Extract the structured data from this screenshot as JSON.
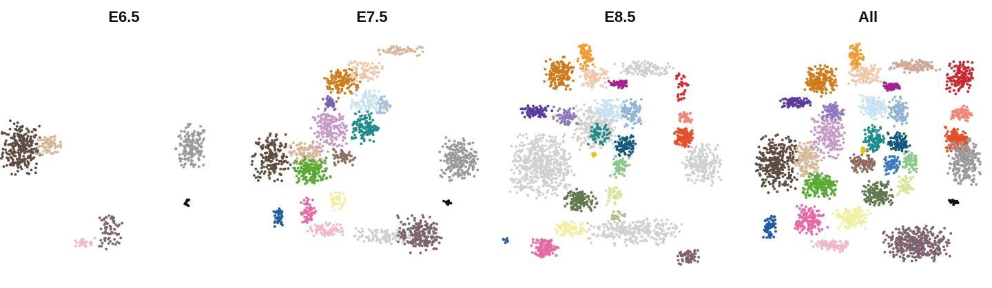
{
  "chart_data": {
    "type": "scatter",
    "panels": [
      {
        "title": "E6.5",
        "clusters": [
          {
            "color": "#5e4d40",
            "cx": -0.88,
            "cy": 0.12,
            "rx": 0.14,
            "ry": 0.2,
            "n": 260
          },
          {
            "color": "#d8b89a",
            "cx": -0.64,
            "cy": 0.14,
            "rx": 0.1,
            "ry": 0.07,
            "n": 70
          },
          {
            "color": "#9a9a9a",
            "cx": 0.58,
            "cy": 0.12,
            "rx": 0.12,
            "ry": 0.18,
            "n": 150
          },
          {
            "color": "#111111",
            "cx": 0.54,
            "cy": -0.36,
            "rx": 0.02,
            "ry": 0.03,
            "n": 10
          },
          {
            "color": "#7e6470",
            "cx": -0.12,
            "cy": -0.6,
            "rx": 0.1,
            "ry": 0.13,
            "n": 70
          },
          {
            "color": "#f4b6c6",
            "cx": -0.36,
            "cy": -0.72,
            "rx": 0.1,
            "ry": 0.04,
            "n": 25
          }
        ]
      },
      {
        "title": "E7.5",
        "clusters": [
          {
            "color": "#5e4d40",
            "cx": -0.86,
            "cy": 0.04,
            "rx": 0.14,
            "ry": 0.2,
            "n": 180
          },
          {
            "color": "#d8b89a",
            "cx": -0.56,
            "cy": 0.06,
            "rx": 0.12,
            "ry": 0.1,
            "n": 120
          },
          {
            "color": "#5aaa35",
            "cx": -0.52,
            "cy": -0.08,
            "rx": 0.14,
            "ry": 0.1,
            "n": 170
          },
          {
            "color": "#c79ac6",
            "cx": -0.36,
            "cy": 0.28,
            "rx": 0.13,
            "ry": 0.16,
            "n": 180
          },
          {
            "color": "#d07a18",
            "cx": -0.26,
            "cy": 0.7,
            "rx": 0.14,
            "ry": 0.12,
            "n": 130
          },
          {
            "color": "#f0c8a8",
            "cx": -0.06,
            "cy": 0.8,
            "rx": 0.14,
            "ry": 0.08,
            "n": 70
          },
          {
            "color": "#d8b89a",
            "cx": 0.22,
            "cy": 0.98,
            "rx": 0.18,
            "ry": 0.04,
            "n": 60
          },
          {
            "color": "#c8e2f2",
            "cx": -0.06,
            "cy": 0.52,
            "rx": 0.11,
            "ry": 0.09,
            "n": 90
          },
          {
            "color": "#1e8c8c",
            "cx": -0.06,
            "cy": 0.3,
            "rx": 0.1,
            "ry": 0.12,
            "n": 120
          },
          {
            "color": "#7d62b0",
            "cx": -0.36,
            "cy": 0.52,
            "rx": 0.06,
            "ry": 0.06,
            "n": 40
          },
          {
            "color": "#8e6c60",
            "cx": -0.24,
            "cy": 0.04,
            "rx": 0.08,
            "ry": 0.06,
            "n": 60
          },
          {
            "color": "#a8bee0",
            "cx": 0.1,
            "cy": 0.5,
            "rx": 0.06,
            "ry": 0.08,
            "n": 40
          },
          {
            "color": "#9a9a9a",
            "cx": 0.74,
            "cy": 0.02,
            "rx": 0.14,
            "ry": 0.16,
            "n": 220
          },
          {
            "color": "#111111",
            "cx": 0.64,
            "cy": -0.36,
            "rx": 0.03,
            "ry": 0.02,
            "n": 12
          },
          {
            "color": "#d0d0d0",
            "cx": 0.1,
            "cy": -0.66,
            "rx": 0.22,
            "ry": 0.06,
            "n": 110
          },
          {
            "color": "#7e6470",
            "cx": 0.4,
            "cy": -0.64,
            "rx": 0.16,
            "ry": 0.14,
            "n": 200
          },
          {
            "color": "#f4b6c6",
            "cx": -0.38,
            "cy": -0.6,
            "rx": 0.14,
            "ry": 0.05,
            "n": 70
          },
          {
            "color": "#e868a2",
            "cx": -0.54,
            "cy": -0.44,
            "rx": 0.06,
            "ry": 0.1,
            "n": 60
          },
          {
            "color": "#f1f0a0",
            "cx": -0.3,
            "cy": -0.34,
            "rx": 0.06,
            "ry": 0.08,
            "n": 40
          },
          {
            "color": "#1f5aa6",
            "cx": -0.8,
            "cy": -0.48,
            "rx": 0.04,
            "ry": 0.08,
            "n": 40
          }
        ]
      },
      {
        "title": "E8.5",
        "clusters": [
          {
            "color": "#d0d0d0",
            "cx": -0.66,
            "cy": -0.04,
            "rx": 0.24,
            "ry": 0.24,
            "n": 520
          },
          {
            "color": "#d0d0d0",
            "cx": -0.2,
            "cy": 0.3,
            "rx": 0.18,
            "ry": 0.18,
            "n": 260
          },
          {
            "color": "#d0d0d0",
            "cx": 0.12,
            "cy": -0.62,
            "rx": 0.34,
            "ry": 0.1,
            "n": 260
          },
          {
            "color": "#d0d0d0",
            "cx": 0.22,
            "cy": 0.82,
            "rx": 0.22,
            "ry": 0.06,
            "n": 110
          },
          {
            "color": "#d0d0d0",
            "cx": 0.7,
            "cy": -0.02,
            "rx": 0.14,
            "ry": 0.16,
            "n": 200
          },
          {
            "color": "#d07a18",
            "cx": -0.52,
            "cy": 0.78,
            "rx": 0.11,
            "ry": 0.12,
            "n": 160
          },
          {
            "color": "#f59a2e",
            "cx": -0.3,
            "cy": 0.92,
            "rx": 0.06,
            "ry": 0.1,
            "n": 70
          },
          {
            "color": "#f0c8a8",
            "cx": -0.22,
            "cy": 0.74,
            "rx": 0.1,
            "ry": 0.08,
            "n": 80
          },
          {
            "color": "#5a3ba0",
            "cx": -0.72,
            "cy": 0.44,
            "rx": 0.12,
            "ry": 0.05,
            "n": 90
          },
          {
            "color": "#8f79c0",
            "cx": -0.46,
            "cy": 0.4,
            "rx": 0.09,
            "ry": 0.07,
            "n": 70
          },
          {
            "color": "#c8e2f2",
            "cx": -0.1,
            "cy": 0.46,
            "rx": 0.1,
            "ry": 0.09,
            "n": 110
          },
          {
            "color": "#8fb4d4",
            "cx": 0.1,
            "cy": 0.42,
            "rx": 0.08,
            "ry": 0.11,
            "n": 90
          },
          {
            "color": "#155a80",
            "cx": 0.04,
            "cy": 0.14,
            "rx": 0.08,
            "ry": 0.08,
            "n": 90
          },
          {
            "color": "#1e8c8c",
            "cx": -0.18,
            "cy": 0.24,
            "rx": 0.08,
            "ry": 0.08,
            "n": 60
          },
          {
            "color": "#a8208c",
            "cx": 0.0,
            "cy": 0.68,
            "rx": 0.08,
            "ry": 0.03,
            "n": 60
          },
          {
            "color": "#8cc88c",
            "cx": 0.0,
            "cy": -0.04,
            "rx": 0.07,
            "ry": 0.09,
            "n": 70
          },
          {
            "color": "#d8e49a",
            "cx": -0.06,
            "cy": -0.3,
            "rx": 0.06,
            "ry": 0.08,
            "n": 40
          },
          {
            "color": "#627850",
            "cx": -0.34,
            "cy": -0.34,
            "rx": 0.12,
            "ry": 0.08,
            "n": 130
          },
          {
            "color": "#b8bc88",
            "cx": -0.02,
            "cy": -0.48,
            "rx": 0.06,
            "ry": 0.04,
            "n": 30
          },
          {
            "color": "#f1f0a0",
            "cx": -0.42,
            "cy": -0.6,
            "rx": 0.12,
            "ry": 0.06,
            "n": 80
          },
          {
            "color": "#e868a2",
            "cx": -0.64,
            "cy": -0.76,
            "rx": 0.1,
            "ry": 0.08,
            "n": 110
          },
          {
            "color": "#7e6470",
            "cx": 0.58,
            "cy": -0.84,
            "rx": 0.08,
            "ry": 0.06,
            "n": 60
          },
          {
            "color": "#d62a2a",
            "cx": 0.52,
            "cy": 0.66,
            "rx": 0.06,
            "ry": 0.12,
            "n": 35
          },
          {
            "color": "#f08878",
            "cx": 0.56,
            "cy": 0.4,
            "rx": 0.06,
            "ry": 0.05,
            "n": 40
          },
          {
            "color": "#e84e25",
            "cx": 0.54,
            "cy": 0.22,
            "rx": 0.07,
            "ry": 0.08,
            "n": 140
          },
          {
            "color": "#f0c010",
            "cx": -0.22,
            "cy": 0.06,
            "rx": 0.02,
            "ry": 0.02,
            "n": 10
          },
          {
            "color": "#1f5aa6",
            "cx": -0.98,
            "cy": -0.7,
            "rx": 0.02,
            "ry": 0.03,
            "n": 8
          }
        ]
      },
      {
        "title": "All",
        "clusters": [
          {
            "color": "#5e4d40",
            "cx": -0.78,
            "cy": -0.02,
            "rx": 0.15,
            "ry": 0.22,
            "n": 320
          },
          {
            "color": "#d8b89a",
            "cx": -0.52,
            "cy": 0.02,
            "rx": 0.11,
            "ry": 0.14,
            "n": 160
          },
          {
            "color": "#c79ac6",
            "cx": -0.34,
            "cy": 0.24,
            "rx": 0.12,
            "ry": 0.18,
            "n": 190
          },
          {
            "color": "#d07a18",
            "cx": -0.4,
            "cy": 0.72,
            "rx": 0.12,
            "ry": 0.12,
            "n": 170
          },
          {
            "color": "#f59a2e",
            "cx": -0.1,
            "cy": 0.92,
            "rx": 0.06,
            "ry": 0.1,
            "n": 80
          },
          {
            "color": "#f0c8a8",
            "cx": -0.02,
            "cy": 0.76,
            "rx": 0.12,
            "ry": 0.08,
            "n": 100
          },
          {
            "color": "#d1a897",
            "cx": 0.4,
            "cy": 0.84,
            "rx": 0.18,
            "ry": 0.05,
            "n": 120
          },
          {
            "color": "#c8282e",
            "cx": 0.78,
            "cy": 0.74,
            "rx": 0.1,
            "ry": 0.12,
            "n": 150
          },
          {
            "color": "#f08878",
            "cx": 0.8,
            "cy": 0.42,
            "rx": 0.08,
            "ry": 0.06,
            "n": 80
          },
          {
            "color": "#e84e25",
            "cx": 0.76,
            "cy": 0.2,
            "rx": 0.09,
            "ry": 0.09,
            "n": 160
          },
          {
            "color": "#a8208c",
            "cx": 0.2,
            "cy": 0.66,
            "rx": 0.08,
            "ry": 0.03,
            "n": 60
          },
          {
            "color": "#5a3ba0",
            "cx": -0.62,
            "cy": 0.52,
            "rx": 0.11,
            "ry": 0.04,
            "n": 80
          },
          {
            "color": "#8f79c0",
            "cx": -0.3,
            "cy": 0.44,
            "rx": 0.08,
            "ry": 0.07,
            "n": 70
          },
          {
            "color": "#c8e2f2",
            "cx": 0.04,
            "cy": 0.48,
            "rx": 0.1,
            "ry": 0.09,
            "n": 120
          },
          {
            "color": "#8fb4d4",
            "cx": 0.26,
            "cy": 0.44,
            "rx": 0.08,
            "ry": 0.11,
            "n": 100
          },
          {
            "color": "#155a80",
            "cx": 0.26,
            "cy": 0.16,
            "rx": 0.08,
            "ry": 0.08,
            "n": 100
          },
          {
            "color": "#1e8c8c",
            "cx": 0.06,
            "cy": 0.2,
            "rx": 0.08,
            "ry": 0.1,
            "n": 100
          },
          {
            "color": "#3a7bbf",
            "cx": 0.2,
            "cy": -0.02,
            "rx": 0.06,
            "ry": 0.08,
            "n": 70
          },
          {
            "color": "#8cc88c",
            "cx": 0.36,
            "cy": 0.0,
            "rx": 0.06,
            "ry": 0.09,
            "n": 70
          },
          {
            "color": "#8e6c60",
            "cx": -0.04,
            "cy": -0.02,
            "rx": 0.1,
            "ry": 0.07,
            "n": 90
          },
          {
            "color": "#5aaa35",
            "cx": -0.4,
            "cy": -0.22,
            "rx": 0.14,
            "ry": 0.1,
            "n": 190
          },
          {
            "color": "#627850",
            "cx": 0.08,
            "cy": -0.28,
            "rx": 0.12,
            "ry": 0.09,
            "n": 150
          },
          {
            "color": "#d8e49a",
            "cx": 0.32,
            "cy": -0.22,
            "rx": 0.06,
            "ry": 0.08,
            "n": 50
          },
          {
            "color": "#f1f0a0",
            "cx": -0.14,
            "cy": -0.5,
            "rx": 0.14,
            "ry": 0.09,
            "n": 140
          },
          {
            "color": "#e868a2",
            "cx": -0.5,
            "cy": -0.52,
            "rx": 0.11,
            "ry": 0.12,
            "n": 150
          },
          {
            "color": "#f4b6c6",
            "cx": -0.32,
            "cy": -0.74,
            "rx": 0.14,
            "ry": 0.05,
            "n": 70
          },
          {
            "color": "#1f5aa6",
            "cx": -0.84,
            "cy": -0.58,
            "rx": 0.05,
            "ry": 0.09,
            "n": 60
          },
          {
            "color": "#7e6470",
            "cx": 0.42,
            "cy": -0.72,
            "rx": 0.24,
            "ry": 0.13,
            "n": 360
          },
          {
            "color": "#9a9a9a",
            "cx": 0.82,
            "cy": 0.0,
            "rx": 0.12,
            "ry": 0.17,
            "n": 240
          },
          {
            "color": "#111111",
            "cx": 0.72,
            "cy": -0.36,
            "rx": 0.05,
            "ry": 0.02,
            "n": 20
          },
          {
            "color": "#f0c010",
            "cx": -0.04,
            "cy": 0.1,
            "rx": 0.02,
            "ry": 0.02,
            "n": 10
          }
        ]
      }
    ]
  }
}
